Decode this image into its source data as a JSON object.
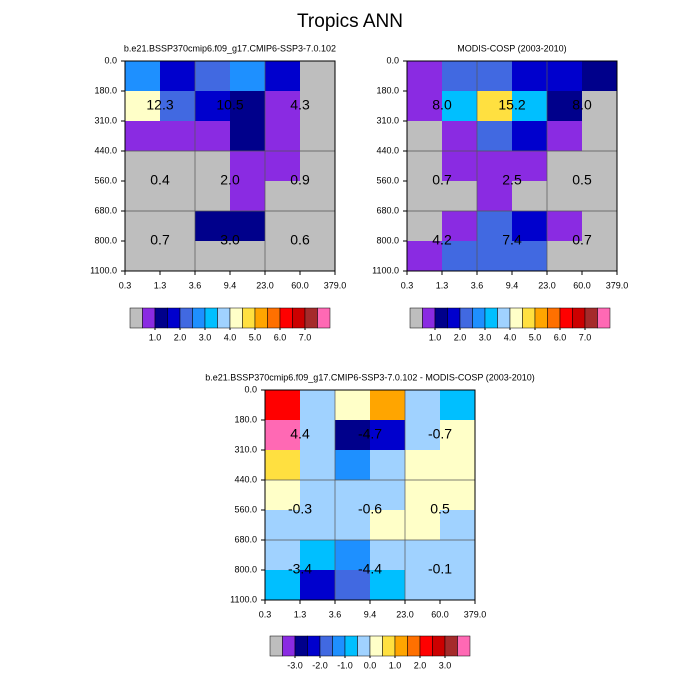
{
  "figure_title": "Tropics ANN",
  "chart_data": [
    {
      "type": "heatmap",
      "title": "b.e21.BSSP370cmip6.f09_g17.CMIP6-SSP3-7.0.102",
      "x_edges": [
        {
          "value": 0.3,
          "label": "0.3"
        },
        {
          "value": 1.3,
          "label": "1.3"
        },
        {
          "value": 3.6,
          "label": "3.6"
        },
        {
          "value": 9.4,
          "label": "9.4"
        },
        {
          "value": 23,
          "label": "23.0"
        },
        {
          "value": 60,
          "label": "60.0"
        },
        {
          "value": 379,
          "label": "379.0"
        }
      ],
      "y_edges": [
        {
          "value": 0,
          "label": "0.0"
        },
        {
          "value": 180,
          "label": "180.0"
        },
        {
          "value": 310,
          "label": "310.0"
        },
        {
          "value": 440,
          "label": "440.0"
        },
        {
          "value": 560,
          "label": "560.0"
        },
        {
          "value": 680,
          "label": "680.0"
        },
        {
          "value": 800,
          "label": "800.0"
        },
        {
          "value": 1100,
          "label": "1100.0"
        }
      ],
      "values": [
        [
          2.8,
          1.8,
          2.2,
          2.8,
          1.8,
          0.2
        ],
        [
          4.2,
          2.2,
          1.8,
          1.2,
          0.8,
          0.2
        ],
        [
          0.8,
          0.8,
          0.8,
          1.2,
          0.8,
          0.2
        ],
        [
          0.2,
          0.2,
          0.2,
          0.8,
          0.8,
          0.2
        ],
        [
          0.2,
          0.2,
          0.2,
          0.8,
          0.2,
          0.2
        ],
        [
          0.2,
          0.2,
          1.2,
          1.2,
          0.2,
          0.2
        ],
        [
          0.2,
          0.2,
          0.2,
          0.2,
          0.2,
          0.2
        ]
      ],
      "group_labels": [
        "12.3",
        "10.5",
        "4.3",
        "0.4",
        "2.0",
        "0.9",
        "0.7",
        "3.0",
        "0.6"
      ],
      "levels": [
        0.5,
        1,
        1.5,
        2,
        2.5,
        3,
        3.5,
        4,
        4.5,
        5,
        5.5,
        6,
        6.5,
        7,
        7.5
      ],
      "colors": [
        "#bebebe",
        "#8a2be2",
        "#00008b",
        "#0000cd",
        "#4169e1",
        "#1e90ff",
        "#00bfff",
        "#a0d2ff",
        "#ffffc8",
        "#ffe040",
        "#ffa500",
        "#ff7000",
        "#ff0000",
        "#cc0000",
        "#a52a2a",
        "#ff69b4"
      ],
      "colorbar_ticks": [
        {
          "value": 1,
          "label": "1.0"
        },
        {
          "value": 2,
          "label": "2.0"
        },
        {
          "value": 3,
          "label": "3.0"
        },
        {
          "value": 4,
          "label": "4.0"
        },
        {
          "value": 5,
          "label": "5.0"
        },
        {
          "value": 6,
          "label": "6.0"
        },
        {
          "value": 7,
          "label": "7.0"
        }
      ]
    },
    {
      "type": "heatmap",
      "title": "MODIS-COSP (2003-2010)",
      "x_edges": [
        {
          "value": 0.3,
          "label": "0.3"
        },
        {
          "value": 1.3,
          "label": "1.3"
        },
        {
          "value": 3.6,
          "label": "3.6"
        },
        {
          "value": 9.4,
          "label": "9.4"
        },
        {
          "value": 23,
          "label": "23.0"
        },
        {
          "value": 60,
          "label": "60.0"
        },
        {
          "value": 379,
          "label": "379.0"
        }
      ],
      "y_edges": [
        {
          "value": 0,
          "label": "0.0"
        },
        {
          "value": 180,
          "label": "180.0"
        },
        {
          "value": 310,
          "label": "310.0"
        },
        {
          "value": 440,
          "label": "440.0"
        },
        {
          "value": 560,
          "label": "560.0"
        },
        {
          "value": 680,
          "label": "680.0"
        },
        {
          "value": 800,
          "label": "800.0"
        },
        {
          "value": 1100,
          "label": "1100.0"
        }
      ],
      "values": [
        [
          0.8,
          2.2,
          2.2,
          1.8,
          1.8,
          1.2
        ],
        [
          0.8,
          3.2,
          4.8,
          3.2,
          1.2,
          0.2
        ],
        [
          0.2,
          0.8,
          2.2,
          1.8,
          0.8,
          0.2
        ],
        [
          0.2,
          0.8,
          0.8,
          0.8,
          0.2,
          0.2
        ],
        [
          0.2,
          0.2,
          0.8,
          0.2,
          0.2,
          0.2
        ],
        [
          0.2,
          0.8,
          2.2,
          1.8,
          0.8,
          0.2
        ],
        [
          0.8,
          2.2,
          2.2,
          2.2,
          0.2,
          0.2
        ]
      ],
      "group_labels": [
        "8.0",
        "15.2",
        "8.0",
        "0.7",
        "2.5",
        "0.5",
        "4.2",
        "7.4",
        "0.7"
      ],
      "levels": [
        0.5,
        1,
        1.5,
        2,
        2.5,
        3,
        3.5,
        4,
        4.5,
        5,
        5.5,
        6,
        6.5,
        7,
        7.5
      ],
      "colors": [
        "#bebebe",
        "#8a2be2",
        "#00008b",
        "#0000cd",
        "#4169e1",
        "#1e90ff",
        "#00bfff",
        "#a0d2ff",
        "#ffffc8",
        "#ffe040",
        "#ffa500",
        "#ff7000",
        "#ff0000",
        "#cc0000",
        "#a52a2a",
        "#ff69b4"
      ],
      "colorbar_ticks": [
        {
          "value": 1,
          "label": "1.0"
        },
        {
          "value": 2,
          "label": "2.0"
        },
        {
          "value": 3,
          "label": "3.0"
        },
        {
          "value": 4,
          "label": "4.0"
        },
        {
          "value": 5,
          "label": "5.0"
        },
        {
          "value": 6,
          "label": "6.0"
        },
        {
          "value": 7,
          "label": "7.0"
        }
      ]
    },
    {
      "type": "heatmap",
      "title": "b.e21.BSSP370cmip6.f09_g17.CMIP6-SSP3-7.0.102 - MODIS-COSP (2003-2010)",
      "x_edges": [
        {
          "value": 0.3,
          "label": "0.3"
        },
        {
          "value": 1.3,
          "label": "1.3"
        },
        {
          "value": 3.6,
          "label": "3.6"
        },
        {
          "value": 9.4,
          "label": "9.4"
        },
        {
          "value": 23,
          "label": "23.0"
        },
        {
          "value": 60,
          "label": "60.0"
        },
        {
          "value": 379,
          "label": "379.0"
        }
      ],
      "y_edges": [
        {
          "value": 0,
          "label": "0.0"
        },
        {
          "value": 180,
          "label": "180.0"
        },
        {
          "value": 310,
          "label": "310.0"
        },
        {
          "value": 440,
          "label": "440.0"
        },
        {
          "value": 560,
          "label": "560.0"
        },
        {
          "value": 680,
          "label": "680.0"
        },
        {
          "value": 800,
          "label": "800.0"
        },
        {
          "value": 1100,
          "label": "1100.0"
        }
      ],
      "values": [
        [
          2.2,
          -0.2,
          0.2,
          1.2,
          -0.2,
          -0.8
        ],
        [
          3.8,
          -0.2,
          -2.8,
          -2.2,
          -0.2,
          0.2
        ],
        [
          0.8,
          -0.2,
          -1.2,
          -0.2,
          0.2,
          0.2
        ],
        [
          0.2,
          -0.2,
          -0.2,
          -0.2,
          0.2,
          0.2
        ],
        [
          -0.2,
          -0.2,
          -0.2,
          0.2,
          0.2,
          -0.2
        ],
        [
          -0.2,
          -0.8,
          -1.2,
          -0.2,
          -0.2,
          -0.2
        ],
        [
          -0.8,
          -2.2,
          -1.8,
          -0.8,
          -0.2,
          -0.2
        ]
      ],
      "group_labels": [
        "4.4",
        "-4.7",
        "-0.7",
        "-0.3",
        "-0.6",
        "0.5",
        "-3.4",
        "-4.4",
        "-0.1"
      ],
      "levels": [
        -3.5,
        -3,
        -2.5,
        -2,
        -1.5,
        -1,
        -0.5,
        0,
        0.5,
        1,
        1.5,
        2,
        2.5,
        3,
        3.5
      ],
      "colors": [
        "#bebebe",
        "#8a2be2",
        "#00008b",
        "#0000cd",
        "#4169e1",
        "#1e90ff",
        "#00bfff",
        "#a0d2ff",
        "#ffffc8",
        "#ffe040",
        "#ffa500",
        "#ff7000",
        "#ff0000",
        "#cc0000",
        "#a52a2a",
        "#ff69b4"
      ],
      "colorbar_ticks": [
        {
          "value": -3,
          "label": "-3.0"
        },
        {
          "value": -2,
          "label": "-2.0"
        },
        {
          "value": -1,
          "label": "-1.0"
        },
        {
          "value": 0,
          "label": "0.0"
        },
        {
          "value": 1,
          "label": "1.0"
        },
        {
          "value": 2,
          "label": "2.0"
        },
        {
          "value": 3,
          "label": "3.0"
        }
      ]
    }
  ]
}
